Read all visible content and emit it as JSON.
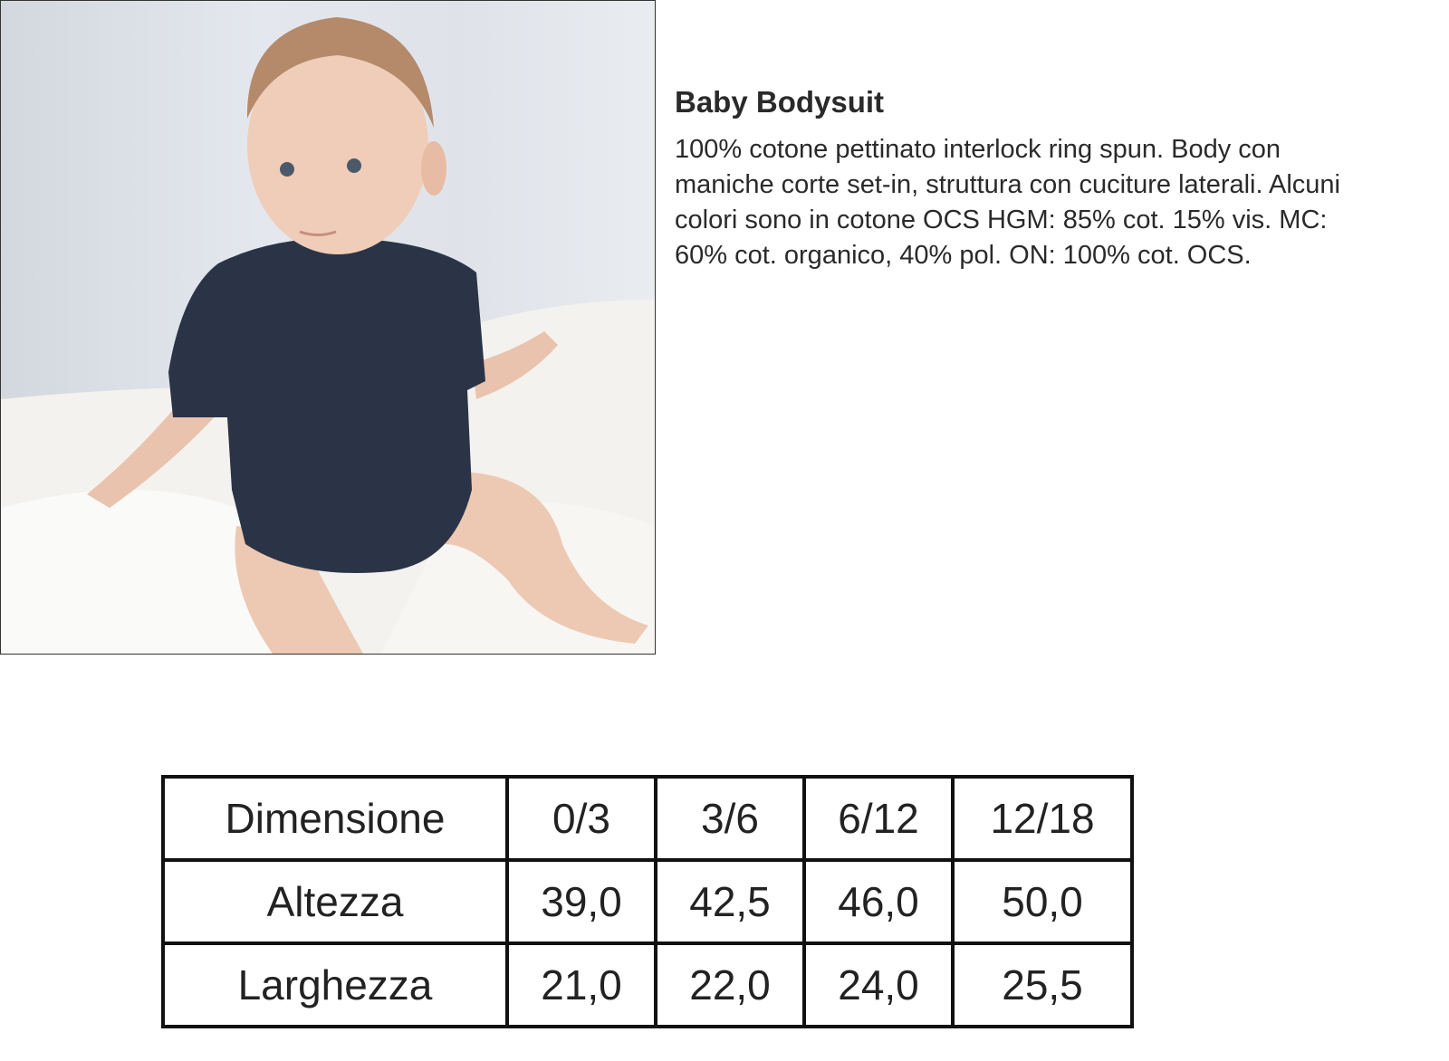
{
  "product": {
    "title": "Baby Bodysuit",
    "description_lines": [
      "100% cotone pettinato interlock ring spun. Body con",
      "maniche corte set-in, struttura con cuciture laterali. Alcuni",
      "colori sono in cotone OCS HGM: 85% cot. 15% vis. MC:",
      "60% cot. organico, 40% pol. ON: 100% cot. OCS."
    ]
  },
  "size_table": {
    "header": [
      "Dimensione",
      "0/3",
      "3/6",
      "6/12",
      "12/18"
    ],
    "rows": [
      [
        "Altezza",
        "39,0",
        "42,5",
        "46,0",
        "50,0"
      ],
      [
        "Larghezza",
        "21,0",
        "22,0",
        "24,0",
        "25,5"
      ]
    ]
  },
  "colors": {
    "bodysuit": "#2b3447",
    "border": "#111111"
  }
}
